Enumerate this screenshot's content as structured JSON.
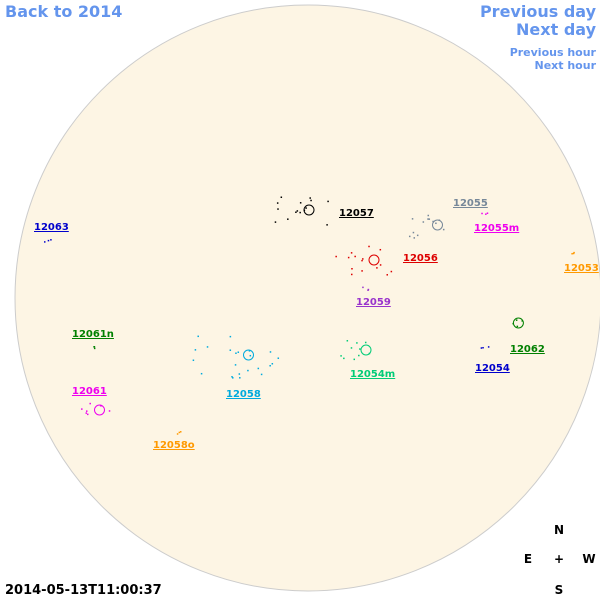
{
  "nav": {
    "back": "Back to 2014",
    "previous_day": "Previous day",
    "next_day": "Next day",
    "previous_hour": "Previous hour",
    "next_hour": "Next hour"
  },
  "regions": [
    {
      "label": "12057",
      "color": "#000000"
    },
    {
      "label": "12055",
      "color": "#778899"
    },
    {
      "label": "12055m",
      "color": "#ee00ee"
    },
    {
      "label": "12056",
      "color": "#dd0000"
    },
    {
      "label": "12053",
      "color": "#ff9900"
    },
    {
      "label": "12063",
      "color": "#0000cc"
    },
    {
      "label": "12059",
      "color": "#9933cc"
    },
    {
      "label": "12061n",
      "color": "#008000"
    },
    {
      "label": "12062",
      "color": "#008000"
    },
    {
      "label": "12054",
      "color": "#0000cc"
    },
    {
      "label": "12054m",
      "color": "#00cc77"
    },
    {
      "label": "12058",
      "color": "#00aadd"
    },
    {
      "label": "12061",
      "color": "#ee00ee"
    },
    {
      "label": "12058o",
      "color": "#ff9900"
    }
  ],
  "timestamp": "2014-05-13T11:00:37",
  "compass": {
    "north": "N",
    "east": "E",
    "center": "+",
    "west": "W",
    "south": "S"
  }
}
